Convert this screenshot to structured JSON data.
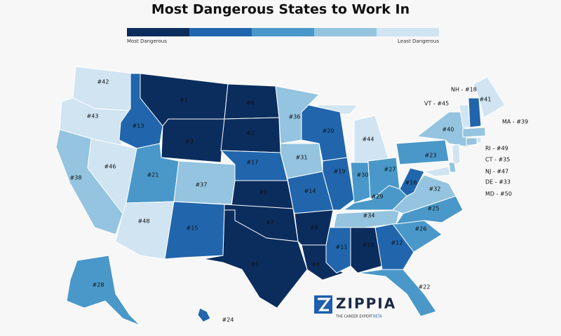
{
  "title": "Most Dangerous States to Work In",
  "legend": {
    "low": "Most Dangerous",
    "high": "Least Dangerous"
  },
  "states": [
    "#42",
    "#43",
    "#38",
    "#46",
    "#13",
    "#1",
    "#3",
    "#21",
    "#48",
    "#37",
    "#15",
    "#6",
    "#2",
    "#17",
    "#9",
    "#7",
    "#5",
    "#36",
    "#31",
    "#14",
    "#8",
    "#4",
    "#20",
    "#19",
    "#44",
    "#30",
    "#27",
    "#29",
    "#34",
    "#11",
    "#10",
    "#12",
    "#22",
    "#26",
    "#25",
    "#32",
    "#16",
    "#23",
    "#40",
    "#41",
    "#28",
    "#24"
  ],
  "callouts": [
    "NH - #18",
    "VT - #45",
    "MA - #39",
    "RI - #49",
    "CT - #35",
    "NJ - #47",
    "DE - #33",
    "MD - #50"
  ],
  "logo": {
    "name": "ZIPPIA",
    "tagline": "THE CAREER EXPERT",
    "badge": "BETA"
  }
}
